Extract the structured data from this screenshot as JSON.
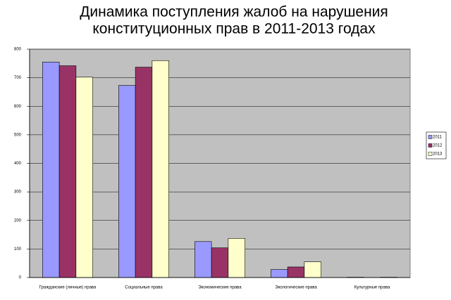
{
  "chart_data": {
    "type": "bar",
    "title": [
      "Динамика поступления жалоб на нарушения",
      "конституционных прав в 2011-2013 годах"
    ],
    "categories": [
      "Гражданские (личные) права",
      "Социальные права",
      "Экономические права",
      "Экологические права",
      "Культурные права"
    ],
    "series": [
      {
        "name": "2011",
        "color": "#9999ff",
        "values": [
          755,
          673,
          126,
          28,
          1
        ]
      },
      {
        "name": "2012",
        "color": "#993366",
        "values": [
          742,
          737,
          104,
          37,
          0
        ]
      },
      {
        "name": "2013",
        "color": "#ffffcc",
        "values": [
          702,
          760,
          137,
          55,
          1
        ]
      }
    ],
    "ylim": [
      0,
      800
    ],
    "yticks": [
      0,
      100,
      200,
      300,
      400,
      500,
      600,
      700,
      800
    ],
    "grid": true,
    "legend": "right"
  }
}
